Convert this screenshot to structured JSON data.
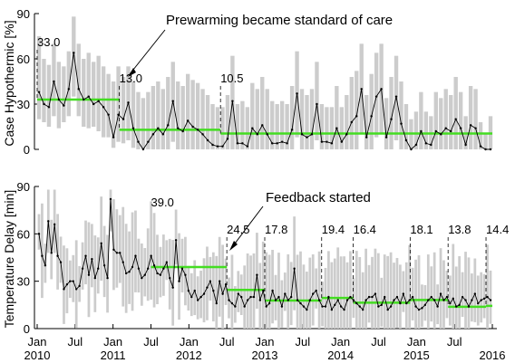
{
  "chart_data": [
    {
      "type": "line",
      "ylabel": "Case Hypothermic [%]",
      "ylim": [
        0,
        90
      ],
      "yticks": [
        "0",
        "30",
        "60",
        "90"
      ],
      "range_bar_color": "#cccccc",
      "line_color": "#000000",
      "segment_color": "#44dd22",
      "series": [
        {
          "values": [
            38,
            30,
            28,
            45,
            33,
            29,
            40,
            64,
            40,
            33,
            35,
            30,
            32,
            28,
            23,
            8,
            23,
            20,
            31,
            14,
            5,
            0,
            5,
            10,
            14,
            10,
            16,
            32,
            14,
            12,
            19,
            15,
            13,
            10,
            6,
            3,
            2,
            2,
            7,
            32,
            4,
            4,
            2,
            14,
            10,
            16,
            10,
            4,
            4,
            5,
            4,
            13,
            37,
            10,
            8,
            10,
            30,
            5,
            5,
            4,
            14,
            5,
            10,
            18,
            22,
            40,
            8,
            22,
            35,
            40,
            8,
            20,
            35,
            17,
            6,
            0,
            3,
            12,
            4,
            3,
            12,
            10,
            14,
            12,
            20,
            14,
            3,
            16,
            14,
            2,
            0,
            0
          ],
          "low": [
            20,
            18,
            15,
            22,
            14,
            18,
            22,
            35,
            22,
            15,
            14,
            15,
            12,
            8,
            8,
            1,
            5,
            4,
            6,
            1,
            0,
            0,
            0,
            0,
            0,
            0,
            0,
            5,
            0,
            0,
            0,
            0,
            0,
            0,
            0,
            0,
            0,
            0,
            0,
            0,
            0,
            0,
            0,
            0,
            0,
            0,
            0,
            0,
            0,
            0,
            0,
            0,
            8,
            0,
            0,
            0,
            6,
            0,
            0,
            0,
            0,
            0,
            0,
            0,
            0,
            10,
            0,
            0,
            8,
            10,
            0,
            0,
            6,
            0,
            0,
            0,
            0,
            0,
            0,
            0,
            0,
            0,
            0,
            0,
            0,
            0,
            0,
            0,
            0,
            0,
            0,
            0
          ],
          "high": [
            75,
            60,
            56,
            70,
            58,
            55,
            65,
            88,
            70,
            60,
            64,
            58,
            62,
            55,
            50,
            45,
            55,
            48,
            55,
            45,
            38,
            34,
            38,
            42,
            45,
            40,
            48,
            58,
            45,
            42,
            50,
            46,
            44,
            40,
            36,
            30,
            28,
            28,
            36,
            62,
            30,
            32,
            28,
            44,
            40,
            48,
            40,
            32,
            30,
            32,
            30,
            42,
            65,
            40,
            36,
            40,
            58,
            30,
            28,
            28,
            42,
            28,
            36,
            48,
            52,
            70,
            36,
            50,
            64,
            70,
            34,
            48,
            62,
            45,
            30,
            20,
            25,
            38,
            25,
            22,
            38,
            34,
            40,
            36,
            48,
            38,
            22,
            42,
            40,
            18,
            10,
            22
          ]
        }
      ],
      "segments": [
        {
          "start": "2010-01",
          "end": "2011-02",
          "mean": 33.0,
          "label": "33.0"
        },
        {
          "start": "2011-02",
          "end": "2012-06",
          "mean": 13.0,
          "label": "13.0"
        },
        {
          "start": "2012-06",
          "end": "2016-01",
          "mean": 10.5,
          "label": "10.5"
        }
      ],
      "annotations": [
        {
          "text": "Prewarming became standard of care",
          "points_to": "2011-02"
        }
      ]
    },
    {
      "type": "line",
      "ylabel": "Temperature Delay [min]",
      "ylim": [
        0,
        90
      ],
      "yticks": [
        "0",
        "30",
        "60",
        "90"
      ],
      "xtick_labels": [
        {
          "date": "2010-01",
          "line1": "Jan",
          "line2": "2010"
        },
        {
          "date": "2010-07",
          "line1": "Jul",
          "line2": ""
        },
        {
          "date": "2011-01",
          "line1": "Jan",
          "line2": "2011"
        },
        {
          "date": "2011-07",
          "line1": "Jul",
          "line2": ""
        },
        {
          "date": "2012-01",
          "line1": "Jan",
          "line2": "2012"
        },
        {
          "date": "2012-07",
          "line1": "Jul",
          "line2": ""
        },
        {
          "date": "2013-01",
          "line1": "Jan",
          "line2": "2013"
        },
        {
          "date": "2013-07",
          "line1": "Jul",
          "line2": ""
        },
        {
          "date": "2014-01",
          "line1": "Jan",
          "line2": "2014"
        },
        {
          "date": "2014-07",
          "line1": "Jul",
          "line2": ""
        },
        {
          "date": "2015-01",
          "line1": "Jan",
          "line2": "2015"
        },
        {
          "date": "2015-07",
          "line1": "Jul",
          "line2": ""
        },
        {
          "date": "2016-01",
          "line1": "",
          "line2": "2016"
        }
      ],
      "range_bar_color": "#cccccc",
      "line_color": "#000000",
      "segment_color": "#44dd22",
      "series": [
        {
          "values": [
            60,
            46,
            40,
            68,
            48,
            66,
            46,
            42,
            25,
            28,
            30,
            30,
            25,
            27,
            38,
            46,
            34,
            44,
            32,
            38,
            54,
            40,
            32,
            82,
            50,
            48,
            48,
            42,
            35,
            36,
            39,
            46,
            38,
            32,
            34,
            38,
            46,
            40,
            35,
            34,
            38,
            42,
            32,
            26,
            56,
            30,
            38,
            34,
            24,
            20,
            24,
            18,
            20,
            22,
            26,
            30,
            24,
            16,
            30,
            22,
            28,
            18,
            16,
            14,
            22,
            20,
            14,
            18,
            20,
            20,
            34,
            18,
            24,
            14,
            16,
            24,
            18,
            20,
            14,
            22,
            18,
            20,
            38,
            18,
            16,
            14,
            12,
            18,
            22,
            24,
            18,
            14,
            14,
            20,
            12,
            15,
            18,
            14,
            12,
            18,
            20,
            18,
            16,
            14,
            12,
            18,
            20,
            20,
            22,
            14,
            15,
            20,
            12,
            14,
            18,
            20,
            16,
            22,
            16,
            18,
            20,
            14,
            12,
            13,
            15,
            18,
            20,
            18,
            14,
            22,
            18,
            20,
            16,
            19,
            14,
            15,
            20,
            18,
            14,
            18,
            22,
            16,
            18,
            19,
            20,
            18
          ]
        }
      ],
      "segments": [
        {
          "start": "2011-07",
          "end": "2012-07",
          "mean": 39.0,
          "label": "39.0"
        },
        {
          "start": "2012-07",
          "end": "2013-01",
          "mean": 24.5,
          "label": "24.5"
        },
        {
          "start": "2013-01",
          "end": "2013-10",
          "mean": 17.8,
          "label": "17.8"
        },
        {
          "start": "2013-10",
          "end": "2014-03",
          "mean": 19.4,
          "label": "19.4"
        },
        {
          "start": "2014-03",
          "end": "2014-12",
          "mean": 16.4,
          "label": "16.4"
        },
        {
          "start": "2014-12",
          "end": "2015-06",
          "mean": 18.1,
          "label": "18.1"
        },
        {
          "start": "2015-06",
          "end": "2015-12",
          "mean": 13.8,
          "label": "13.8"
        },
        {
          "start": "2015-12",
          "end": "2016-01",
          "mean": 14.4,
          "label": "14.4"
        }
      ],
      "annotations": [
        {
          "text": "Feedback started",
          "points_to": "2012-07"
        }
      ]
    }
  ]
}
